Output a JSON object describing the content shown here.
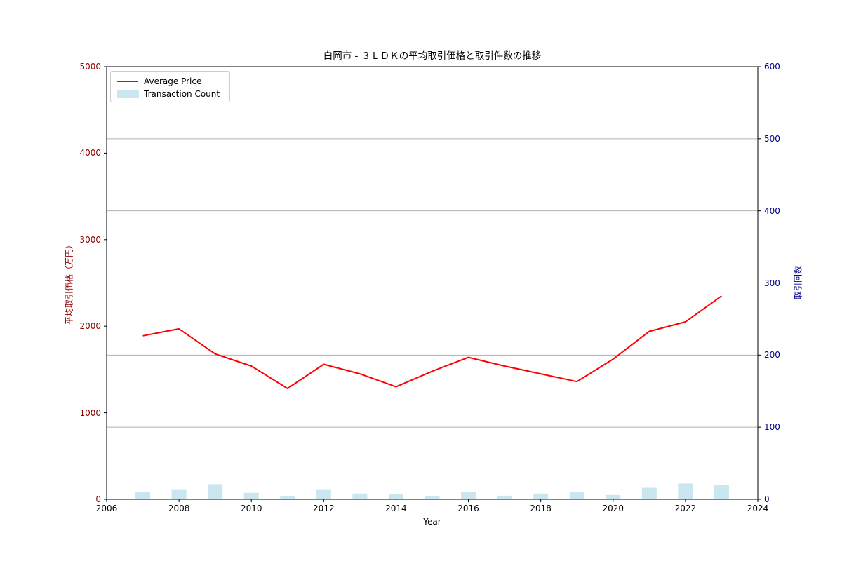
{
  "chart_data": {
    "type": "combo line+bar, dual y-axes",
    "title": "白岡市 - ３ＬＤＫの平均取引価格と取引件数の推移",
    "xlabel": "Year",
    "ylabel_left": "平均取引価格（万円）",
    "ylabel_right": "取引回数",
    "xlim": [
      2006,
      2024
    ],
    "x_ticks": [
      2006,
      2008,
      2010,
      2012,
      2014,
      2016,
      2018,
      2020,
      2022,
      2024
    ],
    "ylim_left": [
      0,
      5000
    ],
    "y_ticks_left": [
      0,
      1000,
      2000,
      3000,
      4000,
      5000
    ],
    "ylim_right": [
      0,
      600
    ],
    "y_ticks_right": [
      0,
      100,
      200,
      300,
      400,
      500,
      600
    ],
    "grid": "horizontal gridlines at right-axis ticks 100-500",
    "legend_position": "upper left",
    "x": [
      2007,
      2008,
      2009,
      2010,
      2011,
      2012,
      2013,
      2014,
      2015,
      2016,
      2017,
      2018,
      2019,
      2020,
      2021,
      2022,
      2023
    ],
    "series": [
      {
        "name": "Average Price",
        "type": "line",
        "axis": "left",
        "color": "#ff0000",
        "values": [
          1890,
          1970,
          1680,
          1540,
          1280,
          1560,
          1450,
          1300,
          1480,
          1640,
          1540,
          1450,
          1360,
          1620,
          1940,
          2050,
          2350
        ]
      },
      {
        "name": "Transaction Count",
        "type": "bar",
        "axis": "right",
        "color": "#add8e6",
        "bar_opacity": 0.65,
        "values": [
          10,
          13,
          21,
          9,
          4,
          13,
          8,
          7,
          4,
          10,
          5,
          8,
          10,
          6,
          16,
          22,
          20
        ]
      }
    ],
    "colors": {
      "left_axis": "#8b0000",
      "right_axis": "#00008b",
      "grid": "#b0b0b0",
      "spine": "#000000",
      "background": "#ffffff"
    }
  }
}
